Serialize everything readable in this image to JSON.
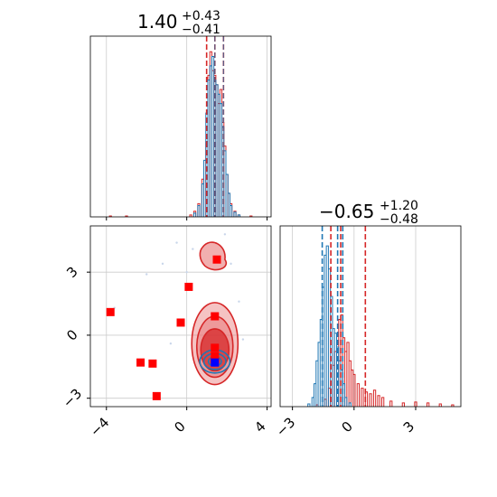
{
  "colors": {
    "red": "#d62728",
    "blue": "#1f77b4",
    "marker_red": "#ff0000",
    "marker_blue": "#0000ff",
    "grid": "#cccccc",
    "fill_red": "#e8797a"
  },
  "chart_data": [
    {
      "type": "histogram",
      "panel": "top-left",
      "title": {
        "value": "1.40",
        "plus": "+0.43",
        "minus": "−0.41"
      },
      "xlim": [
        -4.8,
        4.2
      ],
      "grid": true,
      "vlines_red": [
        0.99,
        1.4,
        1.83
      ],
      "vlines_blue": [
        1.4,
        1.83
      ],
      "series": [
        {
          "color": "red",
          "bins_center": [
            -3.8,
            -3.0,
            0.2,
            0.4,
            0.6,
            0.8,
            1.0,
            1.1,
            1.2,
            1.3,
            1.4,
            1.5,
            1.6,
            1.7,
            1.8,
            1.9,
            2.0,
            2.1,
            2.2,
            2.4,
            2.6,
            3.2
          ],
          "counts": [
            1,
            1,
            2,
            6,
            14,
            40,
            80,
            150,
            175,
            155,
            150,
            140,
            120,
            135,
            100,
            75,
            45,
            25,
            14,
            6,
            2,
            1
          ]
        },
        {
          "color": "blue",
          "bins_center": [
            0.4,
            0.6,
            0.8,
            0.9,
            1.0,
            1.1,
            1.2,
            1.3,
            1.4,
            1.5,
            1.6,
            1.7,
            1.8,
            1.9,
            2.0,
            2.1,
            2.2,
            2.4,
            2.6
          ],
          "counts": [
            4,
            12,
            35,
            60,
            110,
            145,
            160,
            170,
            145,
            140,
            130,
            120,
            95,
            70,
            45,
            25,
            12,
            5,
            2
          ]
        }
      ]
    },
    {
      "type": "scatter",
      "panel": "bottom-left",
      "xlim": [
        -4.8,
        4.2
      ],
      "ylim": [
        -3.4,
        5.2
      ],
      "xticks": [
        "−4",
        "0",
        "4"
      ],
      "yticks": [
        "−3",
        "0",
        "3"
      ],
      "grid": true,
      "red_markers": [
        {
          "x": 1.5,
          "y": 3.6
        },
        {
          "x": 0.1,
          "y": 2.3
        },
        {
          "x": -3.8,
          "y": 1.1
        },
        {
          "x": -0.3,
          "y": 0.6
        },
        {
          "x": 1.4,
          "y": 0.9
        },
        {
          "x": -2.3,
          "y": -1.3
        },
        {
          "x": -1.7,
          "y": -1.35
        },
        {
          "x": -1.5,
          "y": -2.9
        },
        {
          "x": 1.4,
          "y": -0.6
        },
        {
          "x": 1.4,
          "y": -1.0
        },
        {
          "x": 1.4,
          "y": -1.2
        }
      ],
      "blue_markers": [
        {
          "x": 1.4,
          "y": -1.3
        }
      ]
    },
    {
      "type": "histogram",
      "panel": "bottom-right",
      "title": {
        "value": "−0.65",
        "plus": "+1.20",
        "minus": "−0.48"
      },
      "xlim": [
        -3.6,
        5.2
      ],
      "xticks": [
        "−3",
        "0",
        "3"
      ],
      "grid": true,
      "vlines_red": [
        -1.13,
        -0.65,
        0.55
      ],
      "vlines_blue": [
        -1.55,
        -0.8,
        -0.55
      ],
      "series": [
        {
          "color": "red",
          "bins_center": [
            -1.8,
            -1.4,
            -1.2,
            -1.0,
            -0.9,
            -0.8,
            -0.7,
            -0.6,
            -0.5,
            -0.4,
            -0.3,
            -0.2,
            -0.1,
            0.0,
            0.2,
            0.4,
            0.6,
            0.8,
            1.0,
            1.2,
            1.4,
            1.8,
            2.4,
            3.0,
            3.6,
            4.2,
            4.8
          ],
          "counts": [
            2,
            8,
            20,
            45,
            60,
            70,
            95,
            100,
            75,
            60,
            70,
            50,
            40,
            35,
            25,
            20,
            16,
            14,
            18,
            12,
            10,
            6,
            4,
            5,
            4,
            3,
            2
          ]
        },
        {
          "color": "blue",
          "bins_center": [
            -2.2,
            -2.0,
            -1.9,
            -1.8,
            -1.7,
            -1.6,
            -1.5,
            -1.4,
            -1.3,
            -1.2,
            -1.1,
            -1.0,
            -0.9,
            -0.8,
            -0.7,
            -0.6,
            -0.5,
            -0.4,
            -0.2
          ],
          "counts": [
            3,
            10,
            25,
            50,
            70,
            95,
            130,
            165,
            175,
            150,
            120,
            85,
            80,
            65,
            50,
            40,
            25,
            10,
            4
          ]
        }
      ]
    }
  ]
}
